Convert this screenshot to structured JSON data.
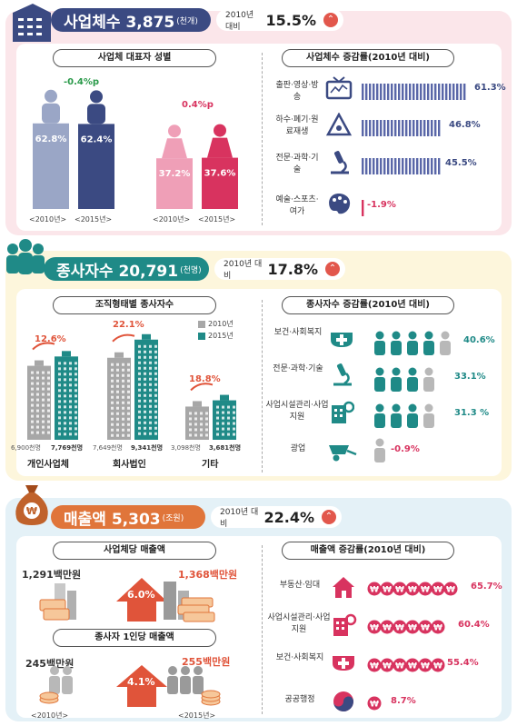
{
  "sec1": {
    "title": "사업체수 3,875",
    "unit": "(천개)",
    "cmp_label": "2010년 대비",
    "cmp_value": "15.5%",
    "left_title": "사업체 대표자 성별",
    "right_title": "사업체수 증감률(2010년 대비)",
    "male_change": "-0.4%p",
    "female_change": "0.4%p",
    "year_2010": "<2010년>",
    "year_2015": "<2015년>",
    "color_male_2010": "#9aa6c6",
    "color_male_2015": "#3b4a82",
    "color_female_2010": "#ef9fb7",
    "color_female_2015": "#d8335f"
  },
  "sec2": {
    "title": "종사자수 20,791",
    "unit": "(천명)",
    "cmp_label": "2010년 대비",
    "cmp_value": "17.8%",
    "left_title": "조직형태별 종사자수",
    "right_title": "종사자수 증감률(2010년 대비)",
    "legend_2010": "2010년",
    "legend_2015": "2015년",
    "color_2010": "#a7a7a7",
    "color_2015": "#1f8a87"
  },
  "sec3": {
    "title": "매출액 5,303",
    "unit": "(조원)",
    "cmp_label": "2010년 대비",
    "cmp_value": "22.4%",
    "left_title1": "사업체당 매출액",
    "left_title2": "종사자 1인당 매출액",
    "right_title": "매출액 증감률(2010년 대비)",
    "biz_2010": "1,291백만원",
    "biz_2015": "1,368백만원",
    "biz_growth": "6.0%",
    "emp_2010": "245백만원",
    "emp_2015": "255백만원",
    "emp_growth": "4.1%",
    "year_2010": "<2010년>",
    "year_2015": "<2015년>"
  },
  "chart_data": [
    {
      "type": "bar",
      "title": "사업체 대표자 성별",
      "categories": [
        "<2010년>",
        "<2015년>"
      ],
      "series": [
        {
          "values": [
            62.8,
            62.4
          ],
          "labels": [
            "62.8%",
            "62.4%"
          ]
        },
        {
          "values": [
            37.2,
            37.6
          ],
          "labels": [
            "37.2%",
            "37.6%"
          ]
        }
      ]
    },
    {
      "type": "bar",
      "title": "사업체수 증감률(2010년 대비)",
      "categories": [
        "출판·영상·방송",
        "하수·폐기·원료재생",
        "전문·과학·기술",
        "예술·스포츠·여가"
      ],
      "values": [
        61.3,
        46.8,
        45.5,
        -1.9
      ],
      "labels": [
        "61.3%",
        "46.8%",
        "45.5%",
        "-1.9%"
      ]
    },
    {
      "type": "bar",
      "title": "조직형태별 종사자수",
      "categories": [
        "개인사업체",
        "회사법인",
        "기타"
      ],
      "series": [
        {
          "name": "2010년",
          "values": [
            6900,
            7649,
            3098
          ],
          "labels": [
            "6,900천명",
            "7,649천명",
            "3,098천명"
          ]
        },
        {
          "name": "2015년",
          "values": [
            7769,
            9341,
            3681
          ],
          "labels": [
            "7,769천명",
            "9,341천명",
            "3,681천명"
          ]
        }
      ],
      "growth": [
        "12.6%",
        "22.1%",
        "18.8%"
      ]
    },
    {
      "type": "bar",
      "title": "종사자수 증감률(2010년 대비)",
      "categories": [
        "보건·사회복지",
        "전문·과학·기술",
        "사업시설관리·사업지원",
        "광업"
      ],
      "values": [
        40.6,
        33.1,
        31.3,
        -0.9
      ],
      "labels": [
        "40.6%",
        "33.1%",
        "31.3 %",
        "-0.9%"
      ]
    },
    {
      "type": "bar",
      "title": "매출액 증감률(2010년 대비)",
      "categories": [
        "부동산·임대",
        "사업시설관리·사업지원",
        "보건·사회복지",
        "공공행정"
      ],
      "values": [
        65.7,
        60.4,
        55.4,
        8.7
      ],
      "labels": [
        "65.7%",
        "60.4%",
        "55.4%",
        "8.7%"
      ]
    }
  ]
}
